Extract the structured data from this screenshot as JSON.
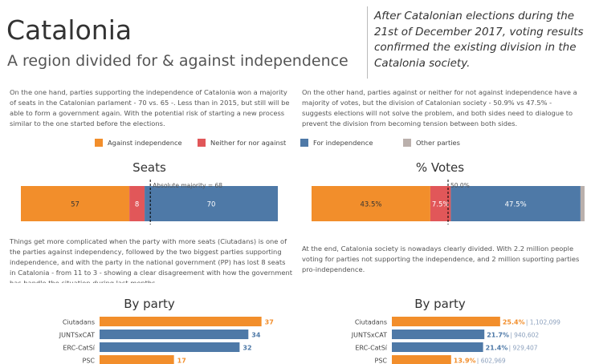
{
  "header": {
    "title": "Catalonia",
    "subtitle": "A region divided for & against independence",
    "quote": "After Catalonian elections during the 21st of December 2017, voting results confirmed the existing division in the Catalonia society."
  },
  "paragraphs": {
    "left_top": "On the one hand, parties supporting the independence of Catalonia won a majority of seats in the Catalonian parlament - 70 vs. 65 -. Less than in 2015, but still will be able to form a government again. With the potential risk of starting a new process similar to the one started before the elections.",
    "right_top": "On the other hand, parties against or neither for not against independence have a majority of votes, but the division of Catalonian society - 50.9% vs 47.5% - suggests elections will not solve the problem, and both sides need to dialogue to prevent the division from becoming tension between both sides.",
    "left_bottom": "Things get more complicated when the party with more seats (Ciutadans) is one of the parties against independency, followed by the two biggest parties supporting independence, and with the party in the national government (PP) has lost 8 seats in Catalonia - from 11 to 3 - showing a clear disagreement with how the government has handle the situation during last months.",
    "right_bottom": "At the end, Catalonia society is nowadays clearly divided. With 2.2 million people voting for parties not supporting the independence, and 2 million suporting parties pro-independence."
  },
  "legend": [
    {
      "label": "Against independence",
      "color": "#F28E2B"
    },
    {
      "label": "Neither for nor against",
      "color": "#E15759"
    },
    {
      "label": "For independence",
      "color": "#4E79A7"
    },
    {
      "label": "Other parties",
      "color": "#BAB0AC"
    }
  ],
  "chart_data": [
    {
      "type": "bar",
      "orientation": "horizontal-stacked",
      "title": "Seats",
      "categories": [
        "Against independence",
        "Neither for nor against",
        "For independence"
      ],
      "values": [
        57,
        8,
        70
      ],
      "labels": [
        "57",
        "8",
        "70"
      ],
      "xlim": [
        0,
        135
      ],
      "reference_line": {
        "value": 68,
        "label": "Absolute majority = 68"
      }
    },
    {
      "type": "bar",
      "orientation": "horizontal-stacked",
      "title": "% Votes",
      "categories": [
        "Against independence",
        "Neither for nor against",
        "For independence",
        "Other parties"
      ],
      "values": [
        43.5,
        7.5,
        47.5,
        1.5
      ],
      "labels": [
        "43.5%",
        "7.5%",
        "47.5%",
        ""
      ],
      "xlim": [
        0,
        100
      ],
      "reference_line": {
        "value": 50,
        "label": "50.0%"
      }
    },
    {
      "type": "bar",
      "orientation": "horizontal",
      "title": "By party",
      "categories": [
        "Ciutadans",
        "JUNTSxCAT",
        "ERC-CatSí",
        "PSC"
      ],
      "values": [
        37,
        34,
        32,
        17
      ],
      "colors": [
        "#F28E2B",
        "#4E79A7",
        "#4E79A7",
        "#F28E2B"
      ],
      "value_labels": [
        "37",
        "34",
        "32",
        "17"
      ],
      "xlim": [
        0,
        40
      ]
    },
    {
      "type": "bar",
      "orientation": "horizontal",
      "title": "By party",
      "categories": [
        "Ciutadans",
        "JUNTSxCAT",
        "ERC-CatSí",
        "PSC"
      ],
      "values": [
        25.4,
        21.7,
        21.4,
        13.9
      ],
      "colors": [
        "#F28E2B",
        "#4E79A7",
        "#4E79A7",
        "#F28E2B"
      ],
      "pct_labels": [
        "25.4%",
        "21.7%",
        "21.4%",
        "13.9%"
      ],
      "vote_labels": [
        "| 1,102,099",
        "| 940,602",
        "| 929,407",
        "| 602,969"
      ],
      "xlim": [
        0,
        27.5
      ]
    }
  ]
}
